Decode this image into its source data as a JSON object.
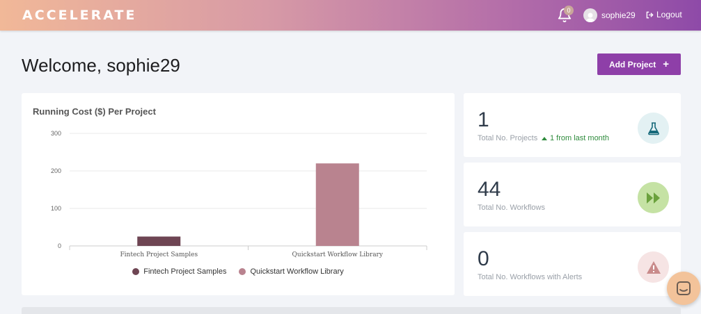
{
  "header": {
    "logo_text": "ACCELERATE",
    "notifications_count": "0",
    "username": "sophie29",
    "logout_label": "Logout"
  },
  "welcome": "Welcome, sophie29",
  "add_project_label": "Add Project",
  "chart_card": {
    "title": "Running Cost ($) Per Project"
  },
  "chart_data": {
    "type": "bar",
    "categories": [
      "Fintech Project Samples",
      "Quickstart Workflow Library"
    ],
    "series": [
      {
        "name": "Fintech Project Samples",
        "values": [
          25,
          null
        ],
        "color": "#6e4553"
      },
      {
        "name": "Quickstart Workflow Library",
        "values": [
          null,
          220
        ],
        "color": "#b9838f"
      }
    ],
    "yticks": [
      "300",
      "200",
      "100",
      "0"
    ],
    "ylim": [
      0,
      300
    ],
    "grid": true,
    "legend": "bottom"
  },
  "stats": [
    {
      "value": "1",
      "label": "Total No. Projects",
      "change": "1 from last month",
      "icon": "flask-icon",
      "icon_bg": "#e3f1f3",
      "icon_color": "#16697a"
    },
    {
      "value": "44",
      "label": "Total No. Workflows",
      "icon": "fast-forward-icon",
      "icon_bg": "#c5e2a4",
      "icon_color": "#6aa13c"
    },
    {
      "value": "0",
      "label": "Total No. Workflows with Alerts",
      "icon": "warning-icon",
      "icon_bg": "#f6e4e4",
      "icon_color": "#c98b8b"
    }
  ]
}
